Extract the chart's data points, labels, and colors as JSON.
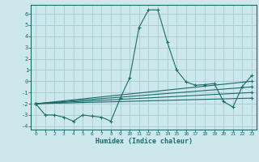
{
  "xlabel": "Humidex (Indice chaleur)",
  "bg_color": "#cce8ec",
  "grid_color": "#aacccc",
  "line_color": "#1a6b6b",
  "spine_color": "#1a6b6b",
  "xlim": [
    -0.5,
    23.5
  ],
  "ylim": [
    -4.3,
    6.8
  ],
  "xticks": [
    0,
    1,
    2,
    3,
    4,
    5,
    6,
    7,
    8,
    9,
    10,
    11,
    12,
    13,
    14,
    15,
    16,
    17,
    18,
    19,
    20,
    21,
    22,
    23
  ],
  "yticks": [
    -4,
    -3,
    -2,
    -1,
    0,
    1,
    2,
    3,
    4,
    5,
    6
  ],
  "lines": [
    {
      "x": [
        0,
        1,
        2,
        3,
        4,
        5,
        6,
        7,
        8,
        9,
        10,
        11,
        12,
        13,
        14,
        15,
        16,
        17,
        18,
        19,
        20,
        21,
        22,
        23
      ],
      "y": [
        -2.0,
        -3.0,
        -3.0,
        -3.2,
        -3.55,
        -3.0,
        -3.1,
        -3.2,
        -3.55,
        -1.5,
        0.3,
        4.8,
        6.35,
        6.35,
        3.5,
        1.0,
        -0.05,
        -0.35,
        -0.3,
        -0.2,
        -1.8,
        -2.3,
        -0.45,
        0.5
      ]
    },
    {
      "x": [
        0,
        23
      ],
      "y": [
        -2.0,
        0.0
      ]
    },
    {
      "x": [
        0,
        23
      ],
      "y": [
        -2.0,
        -0.5
      ]
    },
    {
      "x": [
        0,
        23
      ],
      "y": [
        -2.0,
        -1.0
      ]
    },
    {
      "x": [
        0,
        23
      ],
      "y": [
        -2.0,
        -1.5
      ]
    }
  ]
}
